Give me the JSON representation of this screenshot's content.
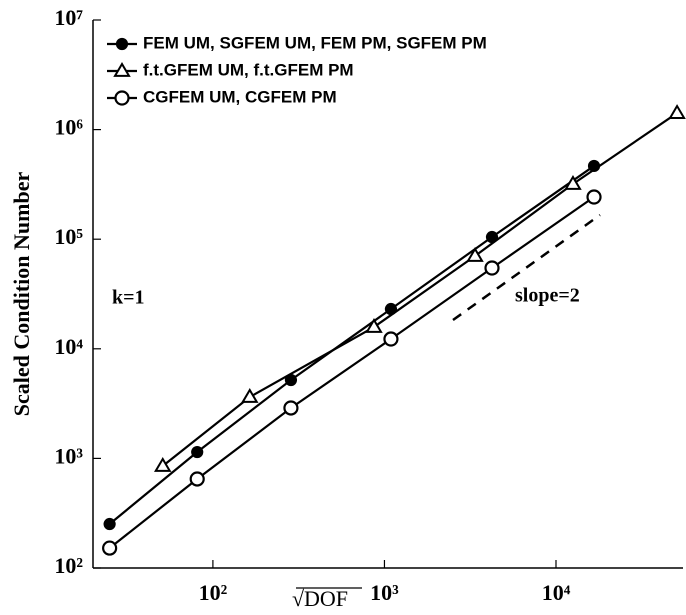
{
  "chart_data": {
    "type": "line",
    "xlabel": "√DOF",
    "ylabel": "Scaled Condition Number",
    "annotations": [
      "k=1",
      "slope=2"
    ],
    "xscale": "log",
    "yscale": "log",
    "xlim": [
      20,
      55000
    ],
    "ylim": [
      100,
      10000000
    ],
    "xticks": [
      {
        "value": 100,
        "label": "10²"
      },
      {
        "value": 1000,
        "label": "10³"
      },
      {
        "value": 10000,
        "label": "10⁴"
      }
    ],
    "yticks": [
      {
        "value": 100,
        "label": "10²"
      },
      {
        "value": 1000,
        "label": "10³"
      },
      {
        "value": 10000,
        "label": "10⁴"
      },
      {
        "value": 100000,
        "label": "10⁵"
      },
      {
        "value": 1000000,
        "label": "10⁶"
      },
      {
        "value": 10000000,
        "label": "10⁷"
      }
    ],
    "legend": "upper left",
    "series": [
      {
        "name": "FEM UM, SGFEM UM, FEM PM, SGFEM PM",
        "color": "#000000",
        "marker": "filled-circle",
        "x": [
          25,
          81,
          285,
          1091,
          4236,
          16660
        ],
        "values": [
          252,
          1143,
          5190,
          23070,
          104700,
          466000
        ]
      },
      {
        "name": "f.t.GFEM UM, f.t.GFEM PM",
        "color": "#000000",
        "marker": "triangle",
        "x": [
          51,
          164,
          869,
          3373,
          12560,
          50800
        ],
        "values": [
          853,
          3630,
          15800,
          70300,
          319000,
          1416000
        ]
      },
      {
        "name": "CGFEM UM, CGFEM PM",
        "color": "#000000",
        "marker": "circle",
        "x": [
          25,
          81,
          285,
          1091,
          4236,
          16660
        ],
        "values": [
          152,
          649,
          2884,
          12280,
          54600,
          242700
        ]
      }
    ]
  }
}
